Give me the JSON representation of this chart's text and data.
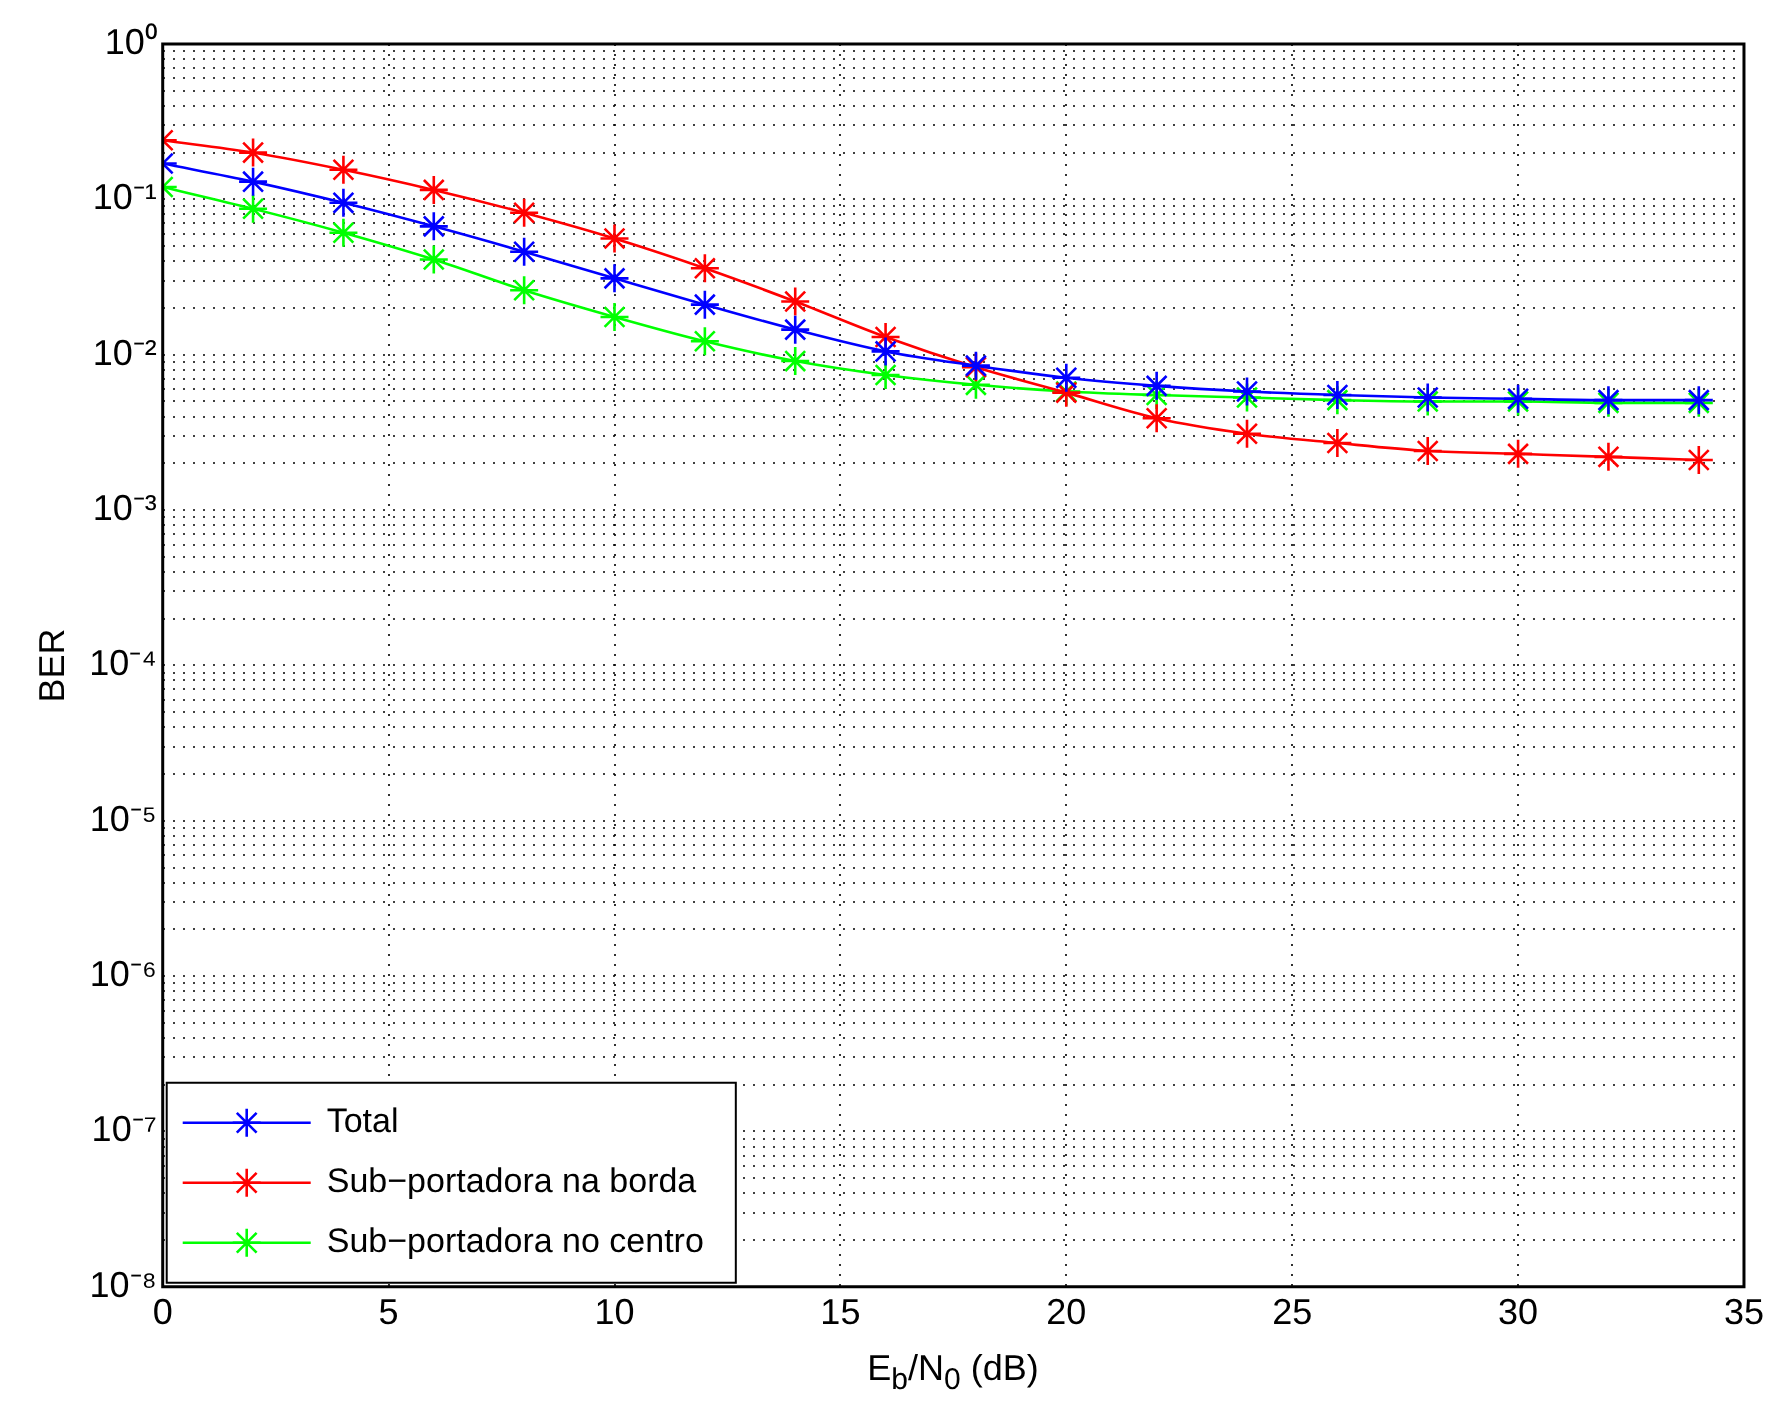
{
  "chart_data": {
    "type": "line",
    "xlabel": "E$_{b}$/N$_{0}$ (dB)",
    "ylabel": "BER",
    "x": [
      0,
      2,
      4,
      6,
      8,
      10,
      12,
      14,
      16,
      18,
      20,
      22,
      24,
      26,
      28,
      30,
      32,
      34
    ],
    "series": [
      {
        "name": "Total",
        "color": "#0000ff",
        "values": [
          0.17,
          0.13,
          0.095,
          0.067,
          0.046,
          0.031,
          0.021,
          0.0145,
          0.0105,
          0.0085,
          0.0071,
          0.0063,
          0.0058,
          0.0055,
          0.0053,
          0.0052,
          0.0051,
          0.0051
        ]
      },
      {
        "name": "Sub−portadora na borda",
        "color": "#ff0000",
        "values": [
          0.24,
          0.2,
          0.155,
          0.115,
          0.082,
          0.056,
          0.036,
          0.022,
          0.013,
          0.0083,
          0.0057,
          0.0039,
          0.0031,
          0.0027,
          0.0024,
          0.0023,
          0.0022,
          0.0021
        ]
      },
      {
        "name": "Sub−portadora no centro",
        "color": "#00ff00",
        "values": [
          0.12,
          0.087,
          0.061,
          0.041,
          0.026,
          0.0175,
          0.0122,
          0.0091,
          0.0074,
          0.0064,
          0.0058,
          0.0055,
          0.0053,
          0.0051,
          0.005,
          0.005,
          0.0049,
          0.0049
        ]
      }
    ],
    "xlim": [
      0,
      35
    ],
    "xticks": [
      0,
      5,
      10,
      15,
      20,
      25,
      30,
      35
    ],
    "ylim": [
      1e-08,
      1
    ],
    "yticks": [
      {
        "value": 1e-08,
        "label": "10⁻⁸"
      },
      {
        "value": 2e-08,
        "label": null
      },
      {
        "value": 3e-08,
        "label": null
      },
      {
        "value": 4e-08,
        "label": null
      },
      {
        "value": 5e-08,
        "label": null
      },
      {
        "value": 6e-08,
        "label": null
      },
      {
        "value": 7e-08,
        "label": null
      },
      {
        "value": 8e-08,
        "label": null
      },
      {
        "value": 9e-08,
        "label": null
      },
      {
        "value": 1e-07,
        "label": "10⁻⁷"
      },
      {
        "value": 2e-07,
        "label": null
      },
      {
        "value": 3e-07,
        "label": null
      },
      {
        "value": 4e-07,
        "label": null
      },
      {
        "value": 5e-07,
        "label": null
      },
      {
        "value": 6e-07,
        "label": null
      },
      {
        "value": 7e-07,
        "label": null
      },
      {
        "value": 8e-07,
        "label": null
      },
      {
        "value": 9e-07,
        "label": null
      },
      {
        "value": 1e-06,
        "label": "10⁻⁶"
      },
      {
        "value": 2e-06,
        "label": null
      },
      {
        "value": 3e-06,
        "label": null
      },
      {
        "value": 4e-06,
        "label": null
      },
      {
        "value": 5e-06,
        "label": null
      },
      {
        "value": 6e-06,
        "label": null
      },
      {
        "value": 7e-06,
        "label": null
      },
      {
        "value": 8e-06,
        "label": null
      },
      {
        "value": 9e-06,
        "label": null
      },
      {
        "value": 1e-05,
        "label": "10⁻⁵"
      },
      {
        "value": 2e-05,
        "label": null
      },
      {
        "value": 3e-05,
        "label": null
      },
      {
        "value": 4e-05,
        "label": null
      },
      {
        "value": 5e-05,
        "label": null
      },
      {
        "value": 6e-05,
        "label": null
      },
      {
        "value": 7e-05,
        "label": null
      },
      {
        "value": 8e-05,
        "label": null
      },
      {
        "value": 9e-05,
        "label": null
      },
      {
        "value": 0.0001,
        "label": "10⁻⁴"
      },
      {
        "value": 0.0002,
        "label": null
      },
      {
        "value": 0.0003,
        "label": null
      },
      {
        "value": 0.0004,
        "label": null
      },
      {
        "value": 0.0005,
        "label": null
      },
      {
        "value": 0.0006,
        "label": null
      },
      {
        "value": 0.0007,
        "label": null
      },
      {
        "value": 0.0008,
        "label": null
      },
      {
        "value": 0.0009,
        "label": null
      },
      {
        "value": 0.001,
        "label": "10⁻³"
      },
      {
        "value": 0.002,
        "label": null
      },
      {
        "value": 0.003,
        "label": null
      },
      {
        "value": 0.004,
        "label": null
      },
      {
        "value": 0.005,
        "label": null
      },
      {
        "value": 0.006,
        "label": null
      },
      {
        "value": 0.007,
        "label": null
      },
      {
        "value": 0.008,
        "label": null
      },
      {
        "value": 0.009,
        "label": null
      },
      {
        "value": 0.01,
        "label": "10⁻²"
      },
      {
        "value": 0.02,
        "label": null
      },
      {
        "value": 0.03,
        "label": null
      },
      {
        "value": 0.04,
        "label": null
      },
      {
        "value": 0.05,
        "label": null
      },
      {
        "value": 0.06,
        "label": null
      },
      {
        "value": 0.07,
        "label": null
      },
      {
        "value": 0.08,
        "label": null
      },
      {
        "value": 0.09,
        "label": null
      },
      {
        "value": 0.1,
        "label": "10⁻¹"
      },
      {
        "value": 0.2,
        "label": null
      },
      {
        "value": 0.3,
        "label": null
      },
      {
        "value": 0.4,
        "label": null
      },
      {
        "value": 0.5,
        "label": null
      },
      {
        "value": 0.6,
        "label": null
      },
      {
        "value": 0.7,
        "label": null
      },
      {
        "value": 0.8,
        "label": null
      },
      {
        "value": 0.9,
        "label": null
      },
      {
        "value": 1,
        "label": "10⁰"
      }
    ],
    "log": "y",
    "grid": true,
    "legend": "bottom left",
    "marker": "cross",
    "line_style": "solid"
  }
}
